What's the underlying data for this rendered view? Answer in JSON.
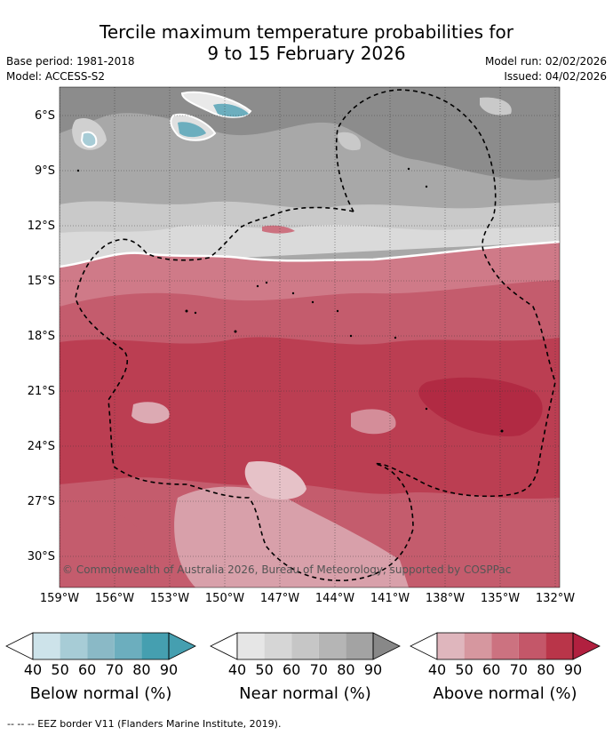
{
  "title_line1": "Tercile maximum temperature probabilities for",
  "title_line2": "9 to 15 February 2026",
  "base_period": "Base period: 1981-2018",
  "model": "Model: ACCESS-S2",
  "model_run": "Model run: 02/02/2026",
  "issued": "Issued: 04/02/2026",
  "copyright": "© Commonwealth of Australia 2026, Bureau of Meteorology, supported by COSPPac",
  "lat_labels": [
    "6°S",
    "9°S",
    "12°S",
    "15°S",
    "18°S",
    "21°S",
    "24°S",
    "27°S",
    "30°S"
  ],
  "lon_labels": [
    "159°W",
    "156°W",
    "153°W",
    "150°W",
    "147°W",
    "144°W",
    "141°W",
    "138°W",
    "135°W",
    "132°W"
  ],
  "legend": {
    "below": {
      "title": "Below normal (%)",
      "colors": [
        "#cde3ea",
        "#a7ccd6",
        "#8ab9c6",
        "#6caebe",
        "#459fb0"
      ]
    },
    "near": {
      "title": "Near normal (%)",
      "colors": [
        "#e6e6e6",
        "#d6d6d6",
        "#c6c6c6",
        "#b5b5b5",
        "#a3a3a3"
      ]
    },
    "above": {
      "title": "Above normal (%)",
      "colors": [
        "#dfb6bd",
        "#d6979f",
        "#cc7280",
        "#c45769",
        "#b93549"
      ]
    },
    "ticks": [
      "40",
      "50",
      "60",
      "70",
      "80",
      "90"
    ]
  },
  "footnote": "--  --  -- EEZ border V11 (Flanders Marine Institute, 2019)."
}
